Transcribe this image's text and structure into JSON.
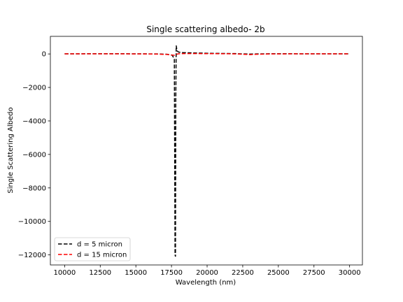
{
  "chart_data": {
    "type": "line",
    "title": "Single scattering albedo- 2b",
    "xlabel": "Wavelength (nm)",
    "ylabel": "Single Scattering Albedo",
    "xlim": [
      9000,
      30900
    ],
    "ylim": [
      -12600,
      1050
    ],
    "xticks": [
      10000,
      12500,
      15000,
      17500,
      20000,
      22500,
      25000,
      27500,
      30000
    ],
    "yticks": [
      0,
      -2000,
      -4000,
      -6000,
      -8000,
      -10000,
      -12000
    ],
    "xtick_labels": [
      "10000",
      "12500",
      "15000",
      "17500",
      "20000",
      "22500",
      "25000",
      "27500",
      "30000"
    ],
    "ytick_labels": [
      "0",
      "−2000",
      "−4000",
      "−6000",
      "−8000",
      "−10000",
      "−12000"
    ],
    "legend_position": "lower-left",
    "grid": false,
    "series": [
      {
        "name": "d = 5 micron",
        "color": "#000000",
        "dash": "dashed",
        "x": [
          10000,
          11000,
          12500,
          14000,
          15500,
          16500,
          17200,
          17550,
          17700,
          17750,
          17780,
          17800,
          17830,
          17860,
          17900,
          18000,
          18300,
          19000,
          20000,
          21000,
          22000,
          22500,
          23000,
          23500,
          24500,
          26000,
          27500,
          29000,
          30000
        ],
        "y": [
          5,
          8,
          12,
          10,
          5,
          0,
          -20,
          -80,
          -300,
          -12000,
          -12100,
          -3000,
          500,
          350,
          180,
          110,
          80,
          60,
          40,
          30,
          20,
          0,
          -10,
          0,
          10,
          10,
          5,
          5,
          5
        ]
      },
      {
        "name": "d = 15 micron",
        "color": "#ff0000",
        "dash": "dashed",
        "x": [
          10000,
          11000,
          12500,
          14000,
          15500,
          16500,
          17200,
          17500,
          17700,
          17780,
          17850,
          18000,
          18500,
          19500,
          20500,
          21500,
          22000,
          22500,
          23000,
          23500,
          24500,
          26000,
          27500,
          29000,
          30000
        ],
        "y": [
          5,
          5,
          5,
          5,
          0,
          -10,
          -30,
          -60,
          -80,
          -60,
          -20,
          10,
          20,
          20,
          15,
          10,
          0,
          -20,
          -40,
          -20,
          0,
          5,
          5,
          5,
          5
        ]
      }
    ]
  }
}
